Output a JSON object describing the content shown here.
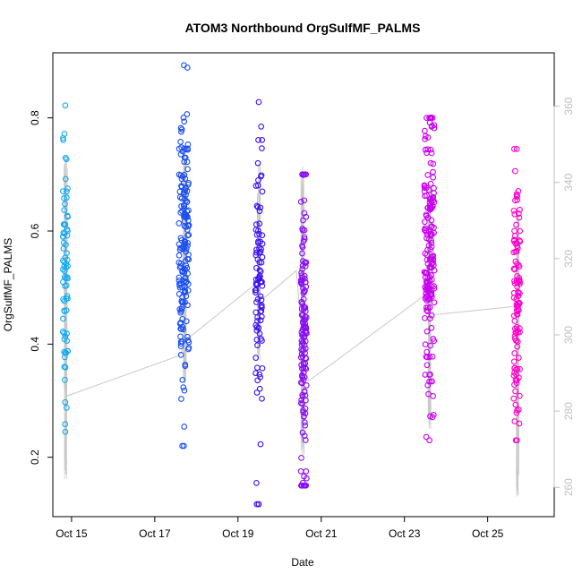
{
  "chart_data": {
    "type": "scatter",
    "title": "ATOM3 Northbound OrgSulfMF_PALMS",
    "xlabel": "Date",
    "ylabel": "OrgSulfMF_PALMS",
    "x_unit": "day (October)",
    "x_range": [
      14.55,
      26.6
    ],
    "x_ticks": [
      15,
      17,
      19,
      21,
      23,
      25
    ],
    "x_tick_labels": [
      "Oct 15",
      "Oct 17",
      "Oct 19",
      "Oct 21",
      "Oct 23",
      "Oct 25"
    ],
    "ylim": [
      0.095,
      0.915
    ],
    "y_ticks": [
      0.2,
      0.4,
      0.6,
      0.8
    ],
    "y_tick_labels": [
      "0.2",
      "0.4",
      "0.6",
      "0.8"
    ],
    "right_axis": {
      "range": [
        252.3,
        374.0
      ],
      "ticks": [
        260,
        280,
        300,
        320,
        340,
        360
      ],
      "tick_labels": [
        "260",
        "280",
        "300",
        "320",
        "340",
        "360"
      ],
      "color": "#bfbfbf"
    },
    "grid": false,
    "legend": "none",
    "marker": "open-circle",
    "color_gradient": [
      "#00bfff",
      "#0000ff",
      "#8000ff",
      "#ff00cc"
    ],
    "flights": [
      {
        "day": 14.85,
        "spread": 0.06,
        "y_mean": 0.54,
        "y_sd": 0.11,
        "y_min": 0.245,
        "y_max": 0.822,
        "n": 75,
        "color": "#12aaf2"
      },
      {
        "day": 17.7,
        "spread": 0.12,
        "y_mean": 0.56,
        "y_sd": 0.12,
        "y_min": 0.22,
        "y_max": 0.893,
        "n": 170,
        "color": "#1a4ef0"
      },
      {
        "day": 19.5,
        "spread": 0.09,
        "y_mean": 0.53,
        "y_sd": 0.14,
        "y_min": 0.117,
        "y_max": 0.828,
        "n": 95,
        "color": "#3d0ff2"
      },
      {
        "day": 20.58,
        "spread": 0.07,
        "y_mean": 0.4,
        "y_sd": 0.13,
        "y_min": 0.15,
        "y_max": 0.7,
        "n": 150,
        "color": "#8a0df2"
      },
      {
        "day": 23.6,
        "spread": 0.12,
        "y_mean": 0.56,
        "y_sd": 0.13,
        "y_min": 0.23,
        "y_max": 0.8,
        "n": 180,
        "color": "#c800f0"
      },
      {
        "day": 25.7,
        "spread": 0.08,
        "y_mean": 0.47,
        "y_sd": 0.11,
        "y_min": 0.23,
        "y_max": 0.745,
        "n": 110,
        "color": "#ff00cc"
      }
    ],
    "secondary_series": {
      "color": "#c8c8c8",
      "path": [
        {
          "x": 14.82,
          "y": 0.33
        },
        {
          "x": 14.88,
          "y": 0.308
        },
        {
          "x": 17.6,
          "y": 0.38
        },
        {
          "x": 17.8,
          "y": 0.41
        },
        {
          "x": 19.4,
          "y": 0.505
        },
        {
          "x": 19.6,
          "y": 0.48
        },
        {
          "x": 20.4,
          "y": 0.53
        },
        {
          "x": 20.6,
          "y": 0.36
        },
        {
          "x": 20.7,
          "y": 0.335
        },
        {
          "x": 23.5,
          "y": 0.487
        },
        {
          "x": 23.7,
          "y": 0.452
        },
        {
          "x": 25.7,
          "y": 0.467
        }
      ],
      "profiles": [
        {
          "day": 14.86,
          "y_low": 0.16,
          "y_high": 0.73
        },
        {
          "day": 17.72,
          "y_low": 0.33,
          "y_high": 0.75
        },
        {
          "day": 19.5,
          "y_low": 0.37,
          "y_high": 0.72
        },
        {
          "day": 20.55,
          "y_low": 0.2,
          "y_high": 0.72
        },
        {
          "day": 23.6,
          "y_low": 0.25,
          "y_high": 0.68
        },
        {
          "day": 25.72,
          "y_low": 0.13,
          "y_high": 0.63
        }
      ]
    }
  }
}
